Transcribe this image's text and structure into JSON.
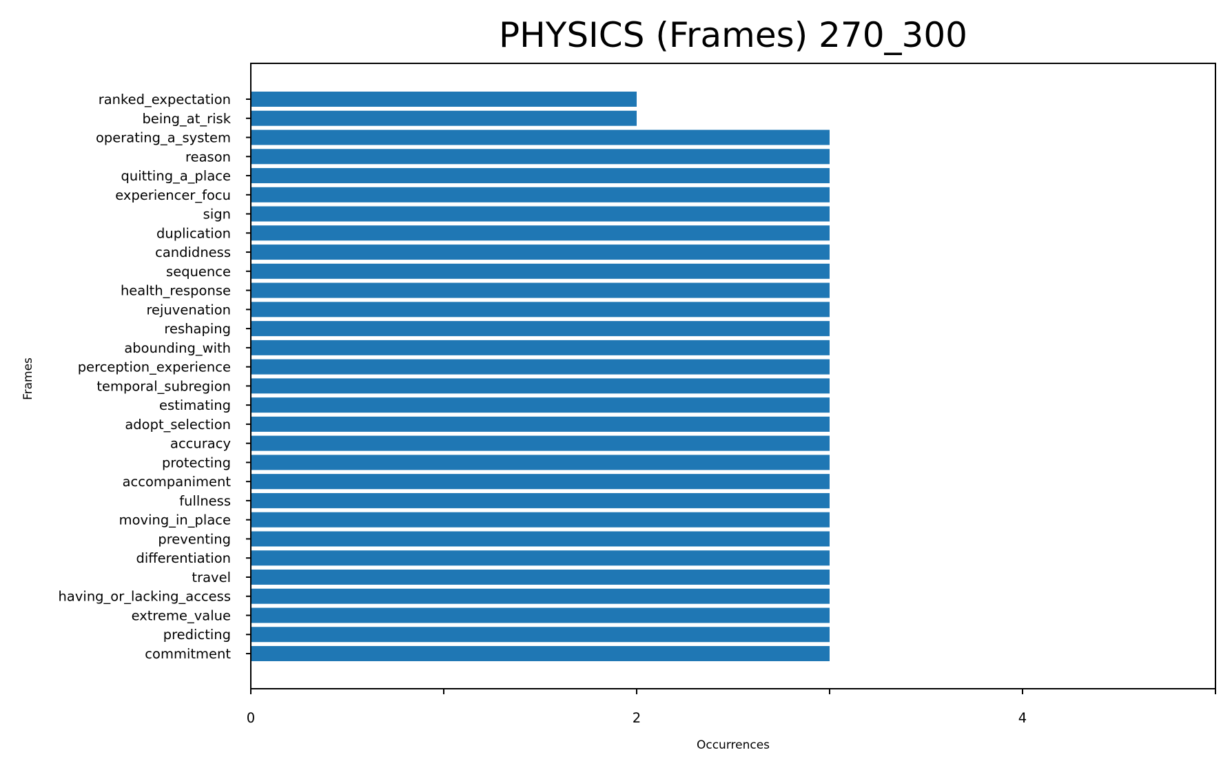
{
  "chart_data": {
    "type": "bar",
    "orientation": "horizontal",
    "title": "PHYSICS (Frames) 270_300",
    "xlabel": "Occurrences",
    "ylabel": "Frames",
    "xlim": [
      0,
      5
    ],
    "x_ticks": [
      0,
      1,
      2,
      3,
      4,
      5
    ],
    "x_tick_labels": [
      "0",
      "",
      "2",
      "",
      "4",
      ""
    ],
    "grid": false,
    "legend": "none",
    "bar_color": "#1f77b4",
    "categories": [
      "ranked_expectation",
      "being_at_risk",
      "operating_a_system",
      "reason",
      "quitting_a_place",
      "experiencer_focu",
      "sign",
      "duplication",
      "candidness",
      "sequence",
      "health_response",
      "rejuvenation",
      "reshaping",
      "abounding_with",
      "perception_experience",
      "temporal_subregion",
      "estimating",
      "adopt_selection",
      "accuracy",
      "protecting",
      "accompaniment",
      "fullness",
      "moving_in_place",
      "preventing",
      "differentiation",
      "travel",
      "having_or_lacking_access",
      "extreme_value",
      "predicting",
      "commitment"
    ],
    "values": [
      2,
      2,
      3,
      3,
      3,
      3,
      3,
      3,
      3,
      3,
      3,
      3,
      3,
      3,
      3,
      3,
      3,
      3,
      3,
      3,
      3,
      3,
      3,
      3,
      3,
      3,
      3,
      3,
      3,
      3
    ]
  }
}
